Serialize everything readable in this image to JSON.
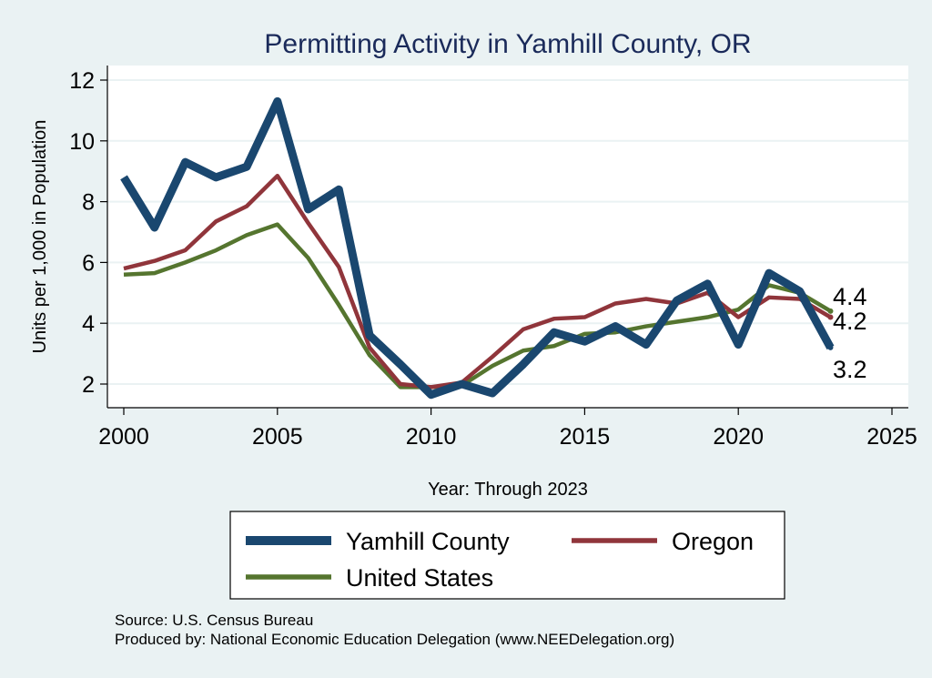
{
  "chart_data": {
    "type": "line",
    "title": "Permitting Activity in Yamhill County, OR",
    "xlabel": "Year: Through 2023",
    "ylabel": "Units per 1,000 in Population",
    "xlim": [
      2000,
      2025
    ],
    "ylim": [
      1.5,
      12.5
    ],
    "xticks": [
      2000,
      2005,
      2010,
      2015,
      2020,
      2025
    ],
    "yticks": [
      2,
      4,
      6,
      8,
      10,
      12
    ],
    "grid": true,
    "legend_position": "bottom",
    "x": [
      2000,
      2001,
      2002,
      2003,
      2004,
      2005,
      2006,
      2007,
      2008,
      2009,
      2010,
      2011,
      2012,
      2013,
      2014,
      2015,
      2016,
      2017,
      2018,
      2019,
      2020,
      2021,
      2022,
      2023
    ],
    "series": [
      {
        "name": "Yamhill County",
        "color": "#1a476f",
        "end_label": "3.2",
        "values": [
          8.8,
          7.15,
          9.3,
          8.8,
          9.15,
          11.3,
          7.75,
          8.4,
          3.6,
          2.65,
          1.65,
          2.0,
          1.7,
          2.65,
          3.7,
          3.4,
          3.9,
          3.3,
          4.75,
          5.3,
          3.3,
          5.65,
          5.05,
          3.2
        ]
      },
      {
        "name": "Oregon",
        "color": "#90353b",
        "end_label": "4.2",
        "values": [
          5.8,
          6.05,
          6.4,
          7.35,
          7.85,
          8.85,
          7.3,
          5.85,
          3.2,
          2.0,
          1.9,
          2.05,
          2.9,
          3.8,
          4.15,
          4.2,
          4.65,
          4.8,
          4.65,
          5.0,
          4.2,
          4.85,
          4.8,
          4.2
        ]
      },
      {
        "name": "United States",
        "color": "#55752f",
        "end_label": "4.4",
        "values": [
          5.6,
          5.65,
          6.0,
          6.4,
          6.9,
          7.25,
          6.15,
          4.6,
          2.95,
          1.9,
          1.9,
          1.95,
          2.6,
          3.1,
          3.25,
          3.65,
          3.7,
          3.9,
          4.05,
          4.2,
          4.45,
          5.25,
          5.0,
          4.4
        ]
      }
    ]
  },
  "notes": {
    "source": "Source: U.S. Census Bureau",
    "producer": "Produced by: National Economic Education Delegation (www.NEEDelegation.org)"
  }
}
